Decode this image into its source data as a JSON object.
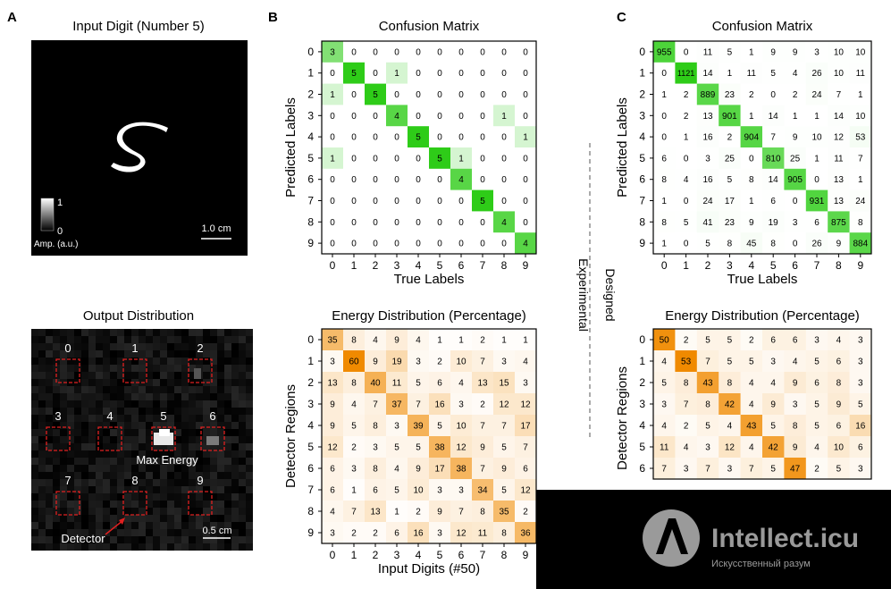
{
  "panel_letters": {
    "a": "A",
    "b": "B",
    "c": "C"
  },
  "panel_a": {
    "input_title": "Input Digit (Number 5)",
    "colorbar_max": "1",
    "colorbar_min": "0",
    "colorbar_label": "Amp. (a.u.)",
    "input_scale": "1.0 cm",
    "output_title": "Output Distribution",
    "region_labels": [
      "0",
      "1",
      "2",
      "3",
      "4",
      "5",
      "6",
      "7",
      "8",
      "9"
    ],
    "max_energy_label": "Max Energy",
    "detector_label": "Detector",
    "output_scale": "0.5 cm"
  },
  "middle_label": {
    "left": "Experimental",
    "right": "Designed"
  },
  "watermark": {
    "name": "Intellect.icu",
    "tagline": "Искусственный разум"
  },
  "colors": {
    "green": "#2ecc18",
    "orange": "#f08a00",
    "axis": "#000000"
  },
  "chart_data": [
    {
      "type": "heatmap",
      "id": "experimental-confusion",
      "title": "Confusion Matrix",
      "xlabel": "True Labels",
      "ylabel": "Predicted Labels",
      "xticks": [
        "0",
        "1",
        "2",
        "3",
        "4",
        "5",
        "6",
        "7",
        "8",
        "9"
      ],
      "yticks": [
        "0",
        "1",
        "2",
        "3",
        "4",
        "5",
        "6",
        "7",
        "8",
        "9"
      ],
      "color": "#2ecc18",
      "max": 5,
      "values": [
        [
          3,
          0,
          0,
          0,
          0,
          0,
          0,
          0,
          0,
          0
        ],
        [
          0,
          5,
          0,
          1,
          0,
          0,
          0,
          0,
          0,
          0
        ],
        [
          1,
          0,
          5,
          0,
          0,
          0,
          0,
          0,
          0,
          0
        ],
        [
          0,
          0,
          0,
          4,
          0,
          0,
          0,
          0,
          1,
          0
        ],
        [
          0,
          0,
          0,
          0,
          5,
          0,
          0,
          0,
          0,
          1
        ],
        [
          1,
          0,
          0,
          0,
          0,
          5,
          1,
          0,
          0,
          0
        ],
        [
          0,
          0,
          0,
          0,
          0,
          0,
          4,
          0,
          0,
          0
        ],
        [
          0,
          0,
          0,
          0,
          0,
          0,
          0,
          5,
          0,
          0
        ],
        [
          0,
          0,
          0,
          0,
          0,
          0,
          0,
          0,
          4,
          0
        ],
        [
          0,
          0,
          0,
          0,
          0,
          0,
          0,
          0,
          0,
          4
        ]
      ]
    },
    {
      "type": "heatmap",
      "id": "designed-confusion",
      "title": "Confusion Matrix",
      "xlabel": "True Labels",
      "ylabel": "Predicted Labels",
      "xticks": [
        "0",
        "1",
        "2",
        "3",
        "4",
        "5",
        "6",
        "7",
        "8",
        "9"
      ],
      "yticks": [
        "0",
        "1",
        "2",
        "3",
        "4",
        "5",
        "6",
        "7",
        "8",
        "9"
      ],
      "color": "#2ecc18",
      "max": 1121,
      "values": [
        [
          955,
          0,
          11,
          5,
          1,
          9,
          9,
          3,
          10,
          10
        ],
        [
          0,
          1121,
          14,
          1,
          11,
          5,
          4,
          26,
          10,
          11
        ],
        [
          1,
          2,
          889,
          23,
          2,
          0,
          2,
          24,
          7,
          1
        ],
        [
          0,
          2,
          13,
          901,
          1,
          14,
          1,
          1,
          14,
          10
        ],
        [
          0,
          1,
          16,
          2,
          904,
          7,
          9,
          10,
          12,
          53
        ],
        [
          6,
          0,
          3,
          25,
          0,
          810,
          25,
          1,
          11,
          7
        ],
        [
          8,
          4,
          16,
          5,
          8,
          14,
          905,
          0,
          13,
          1
        ],
        [
          1,
          0,
          24,
          17,
          1,
          6,
          0,
          931,
          13,
          24
        ],
        [
          8,
          5,
          41,
          23,
          9,
          19,
          3,
          6,
          875,
          8
        ],
        [
          1,
          0,
          5,
          8,
          45,
          8,
          0,
          26,
          9,
          884
        ]
      ]
    },
    {
      "type": "heatmap",
      "id": "experimental-energy",
      "title": "Energy Distribution (Percentage)",
      "xlabel": "Input Digits (#50)",
      "ylabel": "Detector Regions",
      "xticks": [
        "0",
        "1",
        "2",
        "3",
        "4",
        "5",
        "6",
        "7",
        "8",
        "9"
      ],
      "yticks": [
        "0",
        "1",
        "2",
        "3",
        "4",
        "5",
        "6",
        "7",
        "8",
        "9"
      ],
      "color": "#f08a00",
      "max": 60,
      "values": [
        [
          35,
          8,
          4,
          9,
          4,
          1,
          1,
          2,
          1,
          1
        ],
        [
          3,
          60,
          9,
          19,
          3,
          2,
          10,
          7,
          3,
          4
        ],
        [
          13,
          8,
          40,
          11,
          5,
          6,
          4,
          13,
          15,
          3
        ],
        [
          9,
          4,
          7,
          37,
          7,
          16,
          3,
          2,
          12,
          12
        ],
        [
          9,
          5,
          8,
          3,
          39,
          5,
          10,
          7,
          7,
          17
        ],
        [
          12,
          2,
          3,
          5,
          5,
          38,
          12,
          9,
          5,
          7
        ],
        [
          6,
          3,
          8,
          4,
          9,
          17,
          38,
          7,
          9,
          6
        ],
        [
          6,
          1,
          6,
          5,
          10,
          3,
          3,
          34,
          5,
          12
        ],
        [
          4,
          7,
          13,
          1,
          2,
          9,
          7,
          8,
          35,
          2
        ],
        [
          3,
          2,
          2,
          6,
          16,
          3,
          12,
          11,
          8,
          36
        ]
      ]
    },
    {
      "type": "heatmap",
      "id": "designed-energy",
      "title": "Energy Distribution (Percentage)",
      "xlabel": "",
      "ylabel": "Detector Regions",
      "xticks": [],
      "yticks": [
        "0",
        "1",
        "2",
        "3",
        "4",
        "5",
        "6"
      ],
      "color": "#f08a00",
      "max": 53,
      "values": [
        [
          50,
          2,
          5,
          5,
          2,
          6,
          6,
          3,
          4,
          3
        ],
        [
          4,
          53,
          7,
          5,
          5,
          3,
          4,
          5,
          6,
          3
        ],
        [
          5,
          8,
          43,
          8,
          4,
          4,
          9,
          6,
          8,
          3
        ],
        [
          3,
          7,
          8,
          42,
          4,
          9,
          3,
          5,
          9,
          5
        ],
        [
          4,
          2,
          5,
          4,
          43,
          5,
          8,
          5,
          6,
          16
        ],
        [
          11,
          4,
          3,
          12,
          4,
          42,
          9,
          4,
          10,
          6
        ],
        [
          7,
          3,
          7,
          3,
          7,
          5,
          47,
          2,
          5,
          3
        ]
      ]
    }
  ]
}
